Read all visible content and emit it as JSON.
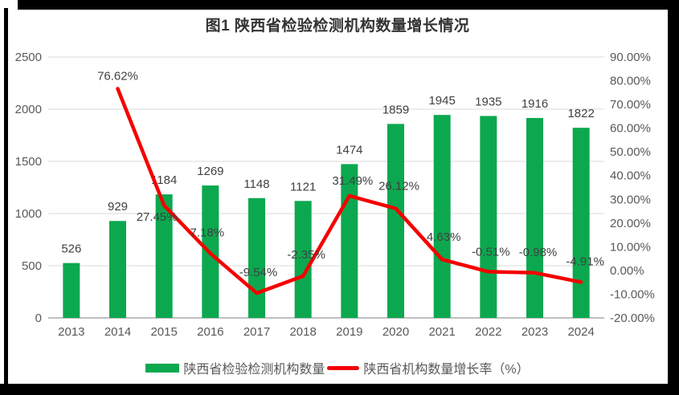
{
  "title": "图1 陕西省检验检测机构数量增长情况",
  "chart_data": {
    "type": "bar+line combo",
    "title": "图1 陕西省检验检测机构数量增长情况",
    "categories": [
      "2013",
      "2014",
      "2015",
      "2016",
      "2017",
      "2018",
      "2019",
      "2020",
      "2021",
      "2022",
      "2023",
      "2024"
    ],
    "series": [
      {
        "name": "陕西省检验检测机构数量",
        "type": "bar",
        "axis": "left",
        "values": [
          526,
          929,
          1184,
          1269,
          1148,
          1121,
          1474,
          1859,
          1945,
          1935,
          1916,
          1822
        ],
        "data_labels": [
          "526",
          "929",
          "1184",
          "1269",
          "1148",
          "1121",
          "1474",
          "1859",
          "1945",
          "1935",
          "1916",
          "1822"
        ]
      },
      {
        "name": "陕西省机构数量增长率（%）",
        "type": "line",
        "axis": "right",
        "values": [
          null,
          76.62,
          27.45,
          7.18,
          -9.54,
          -2.35,
          31.49,
          26.12,
          4.63,
          -0.51,
          -0.98,
          -4.91
        ],
        "data_labels": [
          "",
          "76.62%",
          "27.45%",
          "7.18%",
          "-9.54%",
          "-2.35%",
          "31.49%",
          "26.12%",
          "4.63%",
          "-0.51%",
          "-0.98%",
          "-4.91%"
        ],
        "label_offsets": [
          [
            0,
            0
          ],
          [
            0,
            -16
          ],
          [
            -9,
            14
          ],
          [
            -4,
            -26
          ],
          [
            2,
            -26
          ],
          [
            4,
            -27
          ],
          [
            4,
            -19
          ],
          [
            4,
            -28
          ],
          [
            2,
            -28
          ],
          [
            3,
            -25
          ],
          [
            4,
            -26
          ],
          [
            5,
            -26
          ]
        ]
      }
    ],
    "left_axis": {
      "min": 0,
      "max": 2500,
      "step": 500,
      "ticks": [
        "0",
        "500",
        "1000",
        "1500",
        "2000",
        "2500"
      ]
    },
    "right_axis": {
      "min": -20,
      "max": 90,
      "step": 10,
      "ticks": [
        "90.00%",
        "80.00%",
        "70.00%",
        "60.00%",
        "50.00%",
        "40.00%",
        "30.00%",
        "20.00%",
        "10.00%",
        "0.00%",
        "-10.00%",
        "-20.00%"
      ]
    },
    "grid": true,
    "legend_position": "bottom",
    "colors": {
      "bar": "#0CA84F",
      "line": "#F40000",
      "grid": "#D9D9D9",
      "baseline": "#C0C0C0",
      "axis_text": "#595959",
      "label_text": "#404040",
      "frame": "#000000"
    }
  }
}
